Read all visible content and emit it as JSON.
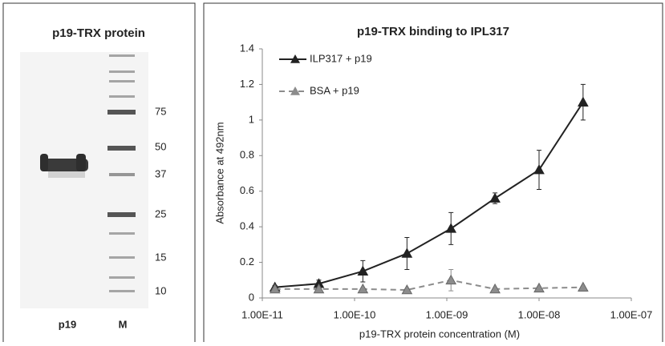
{
  "gel": {
    "title": "p19-TRX protein",
    "markers": [
      "75",
      "50",
      "37",
      "25",
      "15",
      "10"
    ],
    "lanes": [
      "p19",
      "M"
    ]
  },
  "chart_data": {
    "type": "line",
    "title": "p19-TRX binding to IPL317",
    "x_label": "p19-TRX protein concentration (M)",
    "y_label": "Absorbance at 492nm",
    "x": [
      1.37e-11,
      4.1e-11,
      1.23e-10,
      3.7e-10,
      1.11e-09,
      3.33e-09,
      1e-08,
      3e-08
    ],
    "series": [
      {
        "name": "ILP317 + p19",
        "color": "#222222",
        "dashed": false,
        "values": [
          0.06,
          0.08,
          0.15,
          0.25,
          0.39,
          0.56,
          0.72,
          1.1
        ],
        "errors": [
          0.01,
          0.02,
          0.06,
          0.09,
          0.09,
          0.03,
          0.11,
          0.1
        ]
      },
      {
        "name": "BSA + p19",
        "color": "#8c8c8c",
        "dashed": true,
        "values": [
          0.05,
          0.05,
          0.05,
          0.045,
          0.1,
          0.05,
          0.055,
          0.06
        ],
        "errors": [
          0.005,
          0.005,
          0.005,
          0.005,
          0.06,
          0.005,
          0.005,
          0.005
        ]
      }
    ],
    "xscale": "log",
    "xlim": [
      1e-11,
      1e-07
    ],
    "xticks": [
      {
        "value": 1e-11,
        "label": "1.00E-11"
      },
      {
        "value": 1e-10,
        "label": "1.00E-10"
      },
      {
        "value": 1e-09,
        "label": "1.00E-09"
      },
      {
        "value": 1e-08,
        "label": "1.00E-08"
      },
      {
        "value": 1e-07,
        "label": "1.00E-07"
      }
    ],
    "ylim": [
      0,
      1.4
    ],
    "yticks": [
      0,
      0.2,
      0.4,
      0.6,
      0.8,
      1,
      1.2,
      1.4
    ],
    "legend": "top-left"
  }
}
